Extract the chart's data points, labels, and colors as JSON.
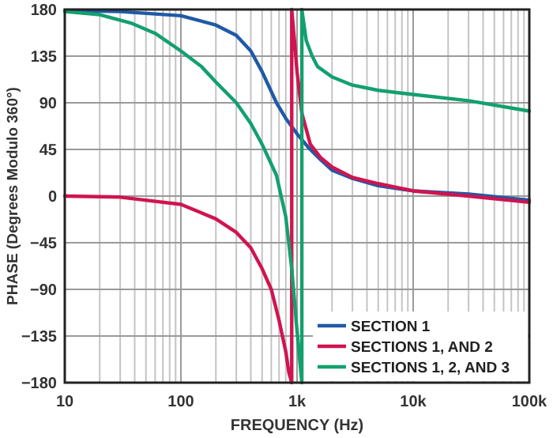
{
  "chart_data": {
    "type": "line",
    "xlabel": "FREQUENCY (Hz)",
    "ylabel": "PHASE (Degrees Modulo 360°)",
    "log": "x",
    "grid": true,
    "legend": "bottom right",
    "marker": "none",
    "line_style": "solid",
    "xlim": [
      10,
      100000
    ],
    "ylim": [
      -180,
      180
    ],
    "xticks": [
      {
        "value": 10,
        "label": "10"
      },
      {
        "value": 20,
        "label": null
      },
      {
        "value": 30,
        "label": null
      },
      {
        "value": 40,
        "label": null
      },
      {
        "value": 50,
        "label": null
      },
      {
        "value": 60,
        "label": null
      },
      {
        "value": 70,
        "label": null
      },
      {
        "value": 80,
        "label": null
      },
      {
        "value": 90,
        "label": null
      },
      {
        "value": 100,
        "label": "100"
      },
      {
        "value": 200,
        "label": null
      },
      {
        "value": 300,
        "label": null
      },
      {
        "value": 400,
        "label": null
      },
      {
        "value": 500,
        "label": null
      },
      {
        "value": 600,
        "label": null
      },
      {
        "value": 700,
        "label": null
      },
      {
        "value": 800,
        "label": null
      },
      {
        "value": 1000,
        "label": "1k"
      },
      {
        "value": 2000,
        "label": null
      },
      {
        "value": 3000,
        "label": null
      },
      {
        "value": 4000,
        "label": null
      },
      {
        "value": 5000,
        "label": null
      },
      {
        "value": 6000,
        "label": null
      },
      {
        "value": 7000,
        "label": null
      },
      {
        "value": 8000,
        "label": null
      },
      {
        "value": 9000,
        "label": null
      },
      {
        "value": 10000,
        "label": "10k"
      },
      {
        "value": 20000,
        "label": null
      },
      {
        "value": 30000,
        "label": null
      },
      {
        "value": 40000,
        "label": null
      },
      {
        "value": 50000,
        "label": null
      },
      {
        "value": 60000,
        "label": null
      },
      {
        "value": 70000,
        "label": null
      },
      {
        "value": 80000,
        "label": null
      },
      {
        "value": 90000,
        "label": null
      },
      {
        "value": 100000,
        "label": "100k"
      }
    ],
    "yticks": [
      -180,
      -135,
      -90,
      -45,
      0,
      45,
      90,
      135,
      180
    ],
    "series": [
      {
        "name": "SECTION 1",
        "color": "#1f5aa6",
        "x": [
          10,
          30,
          100,
          200,
          300,
          400,
          500,
          665,
          800,
          1000,
          1250,
          1600,
          2000,
          3000,
          5000,
          10000,
          30000,
          100000
        ],
        "values": [
          179,
          178,
          174,
          165,
          155,
          140,
          120,
          90,
          75,
          60,
          47,
          35,
          25,
          17,
          10,
          5,
          2,
          -4
        ]
      },
      {
        "name": "SECTIONS 1, AND 2",
        "color": "#d0144f",
        "x": [
          10,
          30,
          100,
          200,
          300,
          400,
          500,
          600,
          700,
          800,
          850,
          900,
          900,
          950,
          1000,
          1100,
          1300,
          1600,
          2000,
          3000,
          5000,
          10000,
          30000,
          100000
        ],
        "values": [
          0,
          -1,
          -8,
          -22,
          -35,
          -50,
          -70,
          -90,
          -120,
          -150,
          -170,
          -180,
          180,
          150,
          120,
          80,
          50,
          37,
          28,
          18,
          12,
          5,
          0,
          -6
        ]
      },
      {
        "name": "SECTIONS 1, 2, AND 3",
        "color": "#13a06e",
        "x": [
          10,
          20,
          37,
          60,
          100,
          150,
          200,
          300,
          400,
          500,
          665,
          800,
          900,
          1000,
          1100,
          1100,
          1200,
          1350,
          1500,
          2000,
          3000,
          5000,
          10000,
          30000,
          100000
        ],
        "values": [
          178,
          175,
          167,
          157,
          140,
          125,
          110,
          90,
          70,
          50,
          20,
          -20,
          -70,
          -130,
          -180,
          180,
          150,
          135,
          125,
          115,
          107,
          102,
          98,
          92,
          82
        ]
      }
    ]
  }
}
